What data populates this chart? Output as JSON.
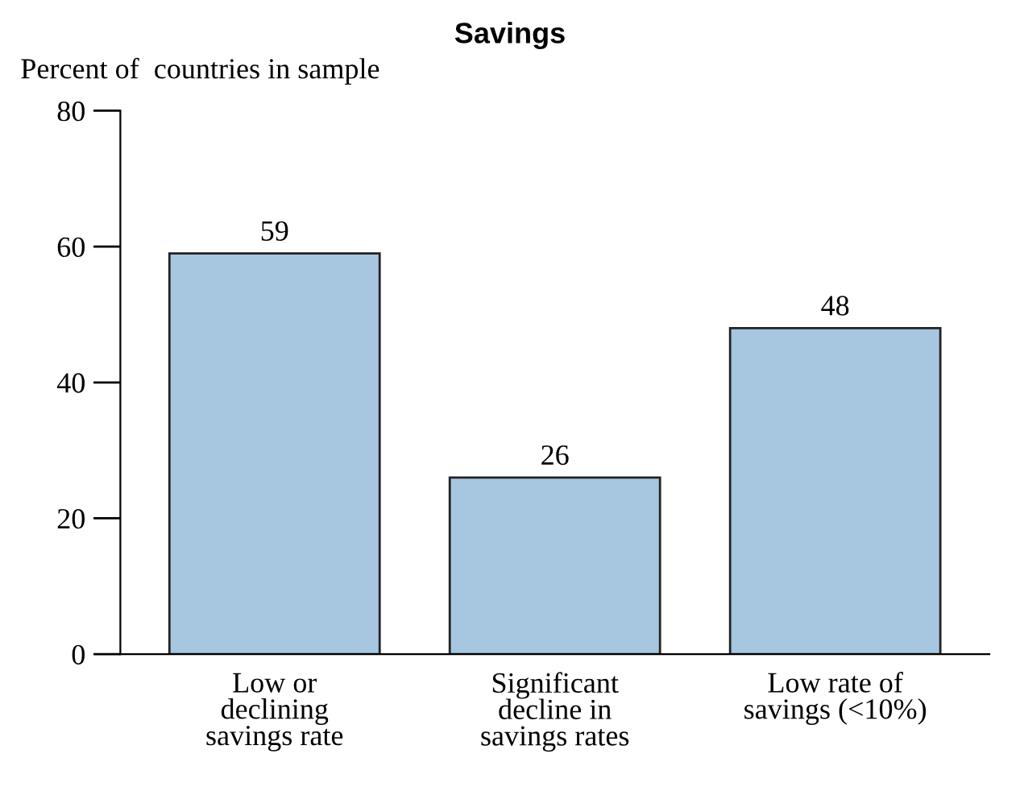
{
  "chart_data": {
    "type": "bar",
    "title": "Savings",
    "ylabel": "Percent of  countries in sample",
    "categories": [
      "Low or\ndeclining\nsavings rate",
      "Significant\ndecline in\nsavings rates",
      "Low rate of\nsavings (<10%)"
    ],
    "values": [
      59,
      26,
      48
    ],
    "color": "#a7c6df",
    "ylim": [
      0,
      80
    ],
    "yticks": [
      0,
      20,
      40,
      60,
      80
    ],
    "grid": false,
    "data_labels": true
  }
}
